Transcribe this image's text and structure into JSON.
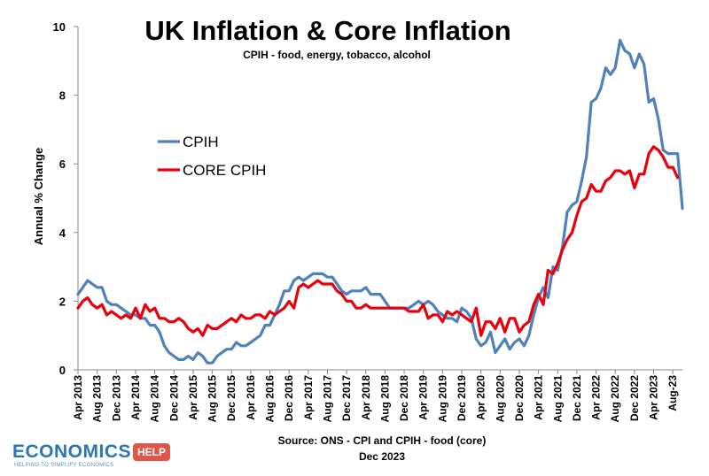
{
  "logo": {
    "word": "ECONOMICS",
    "badge": "HELP",
    "tagline": "HELPING TO SIMPLIFY ECONOMICS",
    "colors": {
      "word": "#2a76b8",
      "badge": "#e0564a"
    }
  },
  "chart_data": {
    "type": "line",
    "title": "UK Inflation & Core Inflation",
    "subtitle": "CPIH - food, energy, tobacco, alcohol",
    "ylabel": "Annual % Change",
    "ylim": [
      0,
      10
    ],
    "yticks": [
      0,
      2,
      4,
      6,
      8,
      10
    ],
    "grid": false,
    "legend_position": "center-left",
    "source": "Source: ONS - CPI and CPIH - food (core)",
    "date_note": "Dec 2023",
    "x_start": "Apr 2013",
    "x_end": "Nov 2023",
    "xtick_labels": [
      "Apr 2013",
      "Aug 2013",
      "Dec 2013",
      "Apr 2014",
      "Aug 2014",
      "Dec 2014",
      "Apr 2015",
      "Aug 2015",
      "Dec 2015",
      "Apr 2016",
      "Aug 2016",
      "Dec 2016",
      "Apr 2017",
      "Aug 2017",
      "Dec 2017",
      "Apr 2018",
      "Aug 2018",
      "Dec 2018",
      "Apr 2019",
      "Aug 2019",
      "Dec 2019",
      "Apr 2020",
      "Aug 2020",
      "Dec 2020",
      "Apr 2021",
      "Aug 2021",
      "Dec 2021",
      "Apr 2022",
      "Aug 2022",
      "Dec 2022",
      "Apr 2023",
      "Aug-23"
    ],
    "series": [
      {
        "name": "CPIH",
        "color": "#4f81bd",
        "values": [
          2.2,
          2.4,
          2.6,
          2.5,
          2.4,
          2.4,
          2.0,
          1.9,
          1.9,
          1.8,
          1.7,
          1.6,
          1.6,
          1.5,
          1.5,
          1.3,
          1.3,
          1.1,
          0.7,
          0.5,
          0.4,
          0.3,
          0.3,
          0.4,
          0.3,
          0.5,
          0.4,
          0.2,
          0.2,
          0.4,
          0.5,
          0.6,
          0.6,
          0.8,
          0.7,
          0.7,
          0.8,
          0.9,
          1.0,
          1.3,
          1.3,
          1.6,
          1.9,
          2.3,
          2.3,
          2.6,
          2.7,
          2.6,
          2.7,
          2.8,
          2.8,
          2.8,
          2.7,
          2.7,
          2.5,
          2.3,
          2.2,
          2.3,
          2.3,
          2.3,
          2.4,
          2.2,
          2.2,
          2.2,
          2.0,
          1.8,
          1.8,
          1.8,
          1.8,
          1.8,
          1.9,
          2.0,
          1.9,
          2.0,
          1.9,
          1.7,
          1.6,
          1.5,
          1.5,
          1.4,
          1.8,
          1.7,
          1.5,
          0.9,
          0.7,
          0.8,
          1.1,
          0.5,
          0.7,
          0.9,
          0.6,
          0.8,
          0.9,
          0.7,
          1.0,
          1.6,
          2.1,
          2.4,
          2.1,
          3.0,
          2.9,
          3.6,
          4.6,
          4.8,
          4.9,
          5.5,
          6.2,
          7.8,
          7.9,
          8.2,
          8.8,
          8.6,
          8.8,
          9.6,
          9.3,
          9.2,
          8.8,
          9.2,
          8.9,
          7.8,
          7.9,
          7.3,
          6.4,
          6.3,
          6.3,
          6.3,
          4.7
        ]
      },
      {
        "name": "CORE CPIH",
        "color": "#e8000b",
        "values": [
          1.8,
          2.0,
          2.1,
          1.9,
          1.8,
          1.9,
          1.6,
          1.7,
          1.6,
          1.5,
          1.6,
          1.5,
          1.8,
          1.5,
          1.9,
          1.7,
          1.8,
          1.5,
          1.5,
          1.4,
          1.4,
          1.5,
          1.4,
          1.2,
          1.1,
          1.2,
          1.0,
          1.3,
          1.2,
          1.2,
          1.3,
          1.4,
          1.5,
          1.4,
          1.6,
          1.5,
          1.5,
          1.6,
          1.6,
          1.5,
          1.7,
          1.6,
          1.7,
          1.8,
          2.0,
          1.8,
          2.4,
          2.5,
          2.4,
          2.5,
          2.6,
          2.5,
          2.5,
          2.5,
          2.3,
          2.2,
          2.0,
          2.0,
          1.8,
          1.8,
          1.9,
          1.8,
          1.8,
          1.8,
          1.8,
          1.8,
          1.8,
          1.8,
          1.8,
          1.7,
          1.7,
          1.7,
          1.9,
          1.5,
          1.6,
          1.6,
          1.4,
          1.7,
          1.6,
          1.7,
          1.6,
          1.5,
          1.4,
          1.8,
          1.0,
          1.4,
          1.4,
          1.2,
          1.5,
          1.1,
          1.5,
          1.5,
          1.1,
          1.3,
          1.4,
          1.9,
          2.2,
          1.9,
          2.9,
          2.8,
          3.1,
          3.5,
          3.8,
          4.0,
          4.5,
          4.9,
          5.0,
          5.4,
          5.2,
          5.2,
          5.5,
          5.6,
          5.8,
          5.8,
          5.7,
          5.8,
          5.3,
          5.7,
          5.7,
          6.3,
          6.5,
          6.4,
          6.2,
          5.9,
          5.9,
          5.6
        ]
      }
    ]
  }
}
